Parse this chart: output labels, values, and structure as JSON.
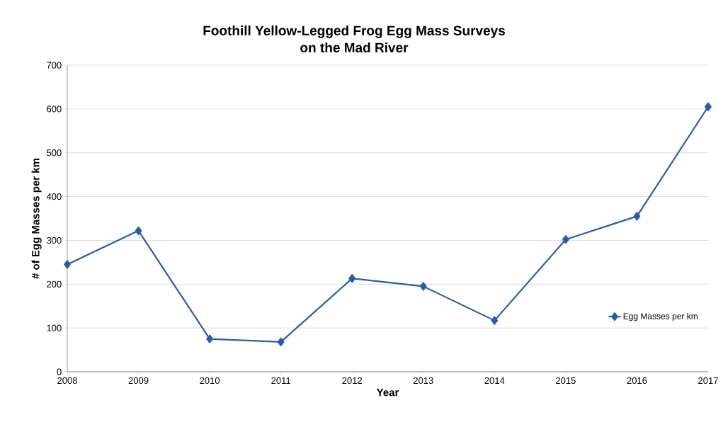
{
  "chart_data": {
    "type": "line",
    "title": "Foothill Yellow-Legged Frog Egg Mass Surveys",
    "subtitle": "on the Mad River",
    "xlabel": "Year",
    "ylabel": "# of Egg Masses per km",
    "categories": [
      "2008",
      "2009",
      "2010",
      "2011",
      "2012",
      "2013",
      "2014",
      "2015",
      "2016",
      "2017"
    ],
    "series": [
      {
        "name": "Egg Masses per km",
        "color": "#2a5caa",
        "values": [
          245,
          322,
          75,
          68,
          213,
          195,
          117,
          302,
          355,
          605
        ]
      }
    ],
    "ylim": [
      0,
      700
    ],
    "yticks": [
      0,
      100,
      200,
      300,
      400,
      500,
      600,
      700
    ],
    "grid": "y",
    "legend": "right",
    "marker": "diamond",
    "line_style": "solid"
  }
}
